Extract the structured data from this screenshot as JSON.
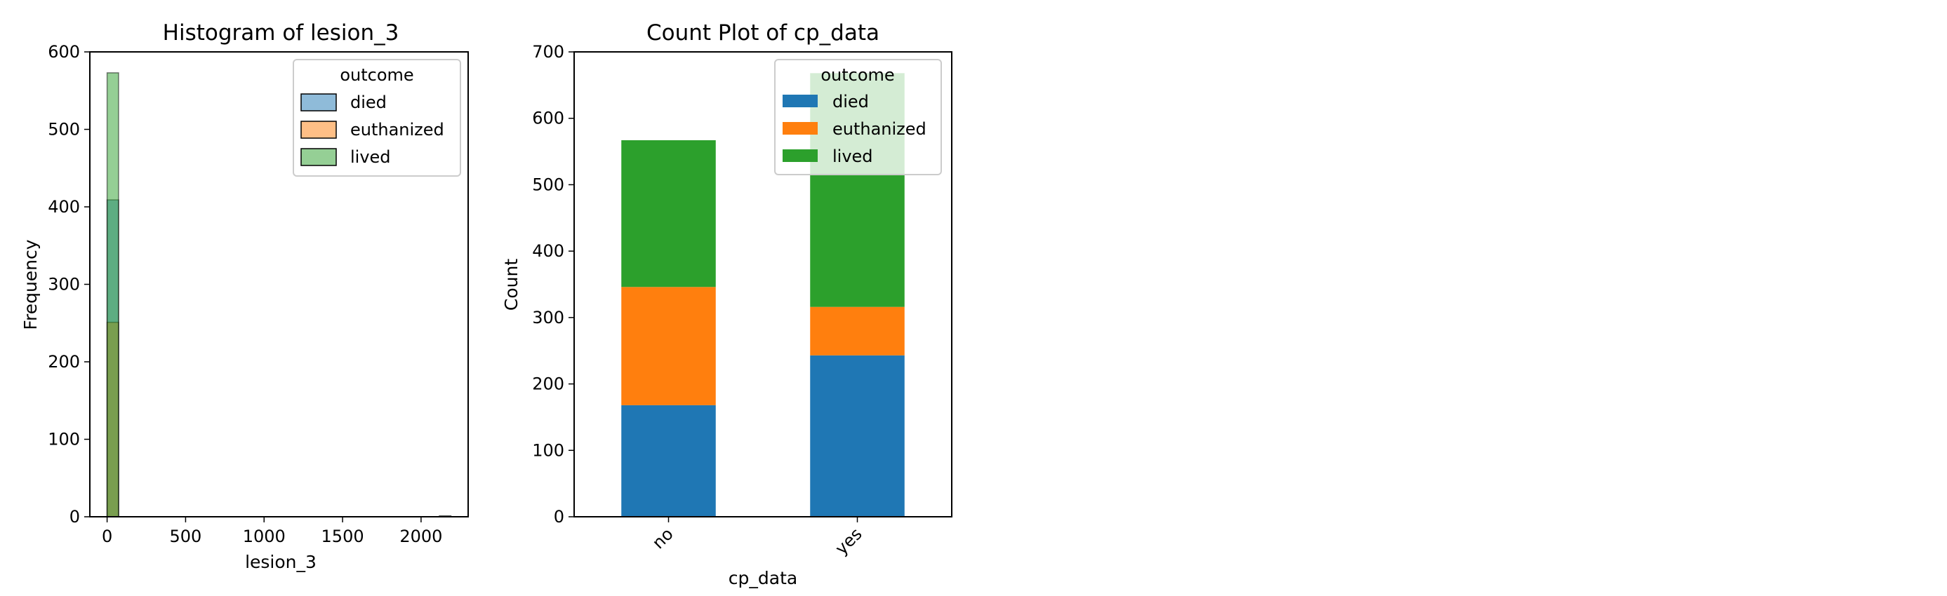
{
  "chart_data": [
    {
      "type": "histogram",
      "title": "Histogram of lesion_3",
      "xlabel": "lesion_3",
      "ylabel": "Frequency",
      "xlim": [
        -110,
        2300
      ],
      "ylim": [
        0,
        600
      ],
      "xticks": [
        0,
        500,
        1000,
        1500,
        2000
      ],
      "yticks": [
        0,
        100,
        200,
        300,
        400,
        500,
        600
      ],
      "bin_width": 73,
      "legend": {
        "title": "outcome",
        "position": "top-right",
        "entries": [
          "died",
          "euthanized",
          "lived"
        ]
      },
      "series": [
        {
          "name": "died",
          "color": "#1f77b4",
          "bins": [
            {
              "x0": 0,
              "x1": 73,
              "count": 409
            },
            {
              "x0": 2117,
              "x1": 2190,
              "count": 1
            }
          ]
        },
        {
          "name": "euthanized",
          "color": "#ff7f0e",
          "bins": [
            {
              "x0": 0,
              "x1": 73,
              "count": 251
            }
          ]
        },
        {
          "name": "lived",
          "color": "#2ca02c",
          "bins": [
            {
              "x0": 0,
              "x1": 73,
              "count": 573
            },
            {
              "x0": 2117,
              "x1": 2190,
              "count": 1
            }
          ]
        }
      ]
    },
    {
      "type": "bar",
      "stacked": true,
      "title": "Count Plot of cp_data",
      "xlabel": "cp_data",
      "ylabel": "Count",
      "categories": [
        "no",
        "yes"
      ],
      "ylim": [
        0,
        700
      ],
      "yticks": [
        0,
        100,
        200,
        300,
        400,
        500,
        600,
        700
      ],
      "legend": {
        "title": "outcome",
        "position": "top-right",
        "entries": [
          "died",
          "euthanized",
          "lived"
        ]
      },
      "series": [
        {
          "name": "died",
          "color": "#1f77b4",
          "values": [
            168,
            243
          ]
        },
        {
          "name": "euthanized",
          "color": "#ff7f0e",
          "values": [
            178,
            73
          ]
        },
        {
          "name": "lived",
          "color": "#2ca02c",
          "values": [
            221,
            352
          ]
        }
      ]
    }
  ]
}
